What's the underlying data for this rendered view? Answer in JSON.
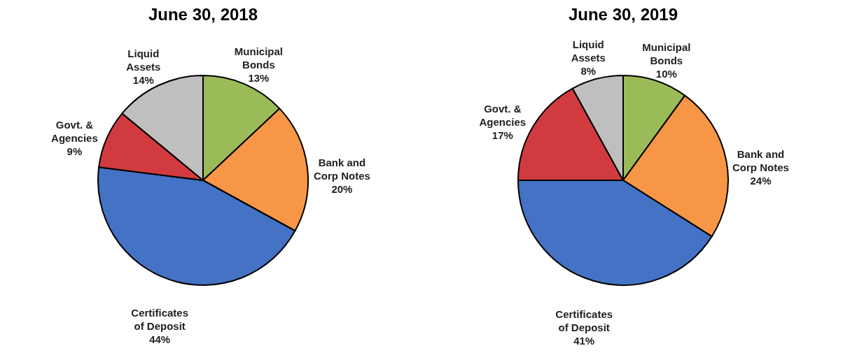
{
  "chart_data": [
    {
      "type": "pie",
      "title": "June 30, 2018",
      "categories": [
        "Municipal Bonds",
        "Bank and Corp Notes",
        "Certificates of Deposit",
        "Govt. & Agencies",
        "Liquid Assets"
      ],
      "values": [
        13,
        20,
        44,
        9,
        14
      ],
      "value_labels": [
        "13%",
        "20%",
        "44%",
        "9%",
        "14%"
      ],
      "colors": [
        "#9bbb59",
        "#f79646",
        "#4472c4",
        "#d13b40",
        "#bfbfbf"
      ],
      "legend": false
    },
    {
      "type": "pie",
      "title": "June 30, 2019",
      "categories": [
        "Municipal Bonds",
        "Bank and Corp Notes",
        "Certificates of Deposit",
        "Govt. & Agencies",
        "Liquid Assets"
      ],
      "values": [
        10,
        24,
        41,
        17,
        8
      ],
      "value_labels": [
        "10%",
        "24%",
        "41%",
        "17%",
        "8%"
      ],
      "colors": [
        "#9bbb59",
        "#f79646",
        "#4472c4",
        "#d13b40",
        "#bfbfbf"
      ],
      "legend": false
    }
  ]
}
